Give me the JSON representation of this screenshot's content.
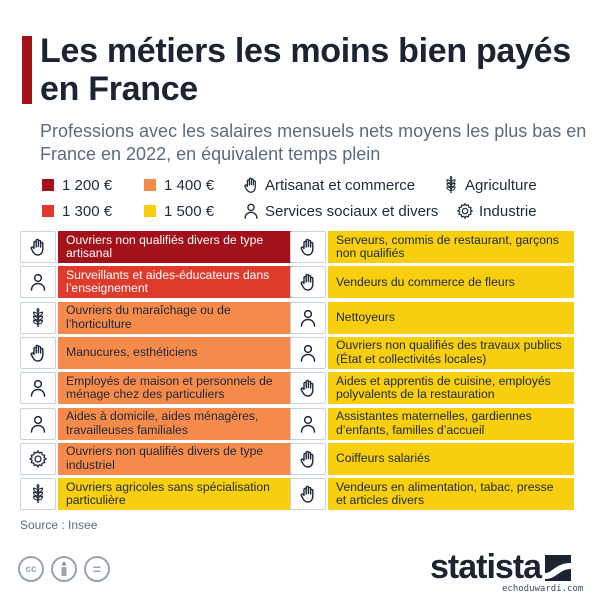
{
  "title": "Les métiers les moins bien payés en France",
  "subtitle": "Professions avec les salaires mensuels nets moyens les plus bas en France en 2022, en équivalent temps plein",
  "legend": {
    "salaries": [
      {
        "label": "1 200 €",
        "color": "#a3111b"
      },
      {
        "label": "1 300 €",
        "color": "#e03a2c"
      },
      {
        "label": "1 400 €",
        "color": "#f58a4b"
      },
      {
        "label": "1 500 €",
        "color": "#f7cf0f"
      }
    ],
    "categories": [
      {
        "label": "Artisanat et commerce",
        "icon": "hand-icon"
      },
      {
        "label": "Services sociaux et divers",
        "icon": "person-icon"
      },
      {
        "label": "Agriculture",
        "icon": "wheat-icon"
      },
      {
        "label": "Industrie",
        "icon": "gear-icon"
      }
    ]
  },
  "colors": {
    "1200": "#a3111b",
    "1300": "#e03a2c",
    "1400": "#f58a4b",
    "1500": "#f7cf0f"
  },
  "left_column": [
    {
      "label": "Ouvriers non qualifiés divers de type artisanal",
      "icon": "hand-icon",
      "salary": "1 200 €"
    },
    {
      "label": "Surveillants et aides-éducateurs dans l’enseignement",
      "icon": "person-icon",
      "salary": "1 300 €"
    },
    {
      "label": "Ouvriers du maraîchage ou de l’horticulture",
      "icon": "wheat-icon",
      "salary": "1 400 €"
    },
    {
      "label": "Manucures, esthéticiens",
      "icon": "hand-icon",
      "salary": "1 400 €"
    },
    {
      "label": "Employés de maison et personnels de ménage chez des particuliers",
      "icon": "person-icon",
      "salary": "1 400 €"
    },
    {
      "label": "Aides à domicile, aides ménagères, travailleuses familiales",
      "icon": "person-icon",
      "salary": "1 400 €"
    },
    {
      "label": "Ouvriers non qualifiés divers de type industriel",
      "icon": "gear-icon",
      "salary": "1 400 €"
    },
    {
      "label": "Ouvriers agricoles sans spécialisation particulière",
      "icon": "wheat-icon",
      "salary": "1 500 €"
    }
  ],
  "right_column": [
    {
      "label": "Serveurs, commis de restaurant, garçons non qualifiés",
      "icon": "hand-icon",
      "salary": "1 500 €"
    },
    {
      "label": "Vendeurs du commerce de fleurs",
      "icon": "hand-icon",
      "salary": "1 500 €"
    },
    {
      "label": "Nettoyeurs",
      "icon": "person-icon",
      "salary": "1 500 €"
    },
    {
      "label": "Ouvriers non qualifiés des travaux publics (État et collectivités locales)",
      "icon": "person-icon",
      "salary": "1 500 €"
    },
    {
      "label": "Aides et apprentis de cuisine, employés polyvalents de la restauration",
      "icon": "hand-icon",
      "salary": "1 500 €"
    },
    {
      "label": "Assistantes maternelles, gardiennes d’enfants, familles d’accueil",
      "icon": "person-icon",
      "salary": "1 500 €"
    },
    {
      "label": "Coiffeurs salariés",
      "icon": "hand-icon",
      "salary": "1 500 €"
    },
    {
      "label": "Vendeurs en alimentation, tabac, presse et articles divers",
      "icon": "hand-icon",
      "salary": "1 500 €"
    }
  ],
  "source": "Source : Insee",
  "license_icons": [
    {
      "icon": "cc-icon",
      "text": "cc"
    },
    {
      "icon": "attribution-icon",
      "text": ""
    },
    {
      "icon": "no-derivatives-icon",
      "text": "="
    }
  ],
  "logo": "statista",
  "watermark": "echoduwardi.com"
}
